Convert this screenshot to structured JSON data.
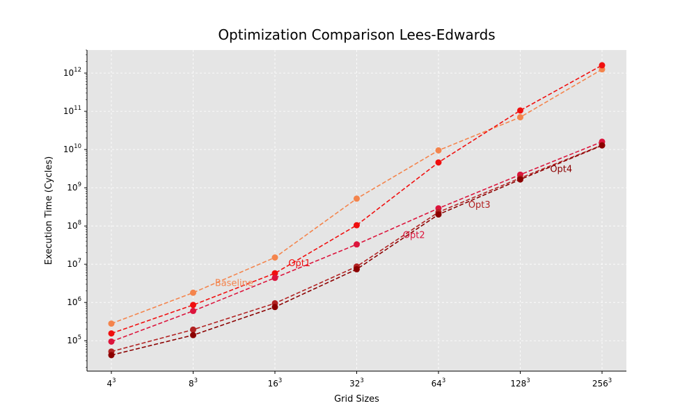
{
  "chart_data": {
    "type": "line",
    "title": "Optimization Comparison Lees-Edwards",
    "xlabel": "Grid Sizes",
    "ylabel": "Execution Time (Cycles)",
    "y_scale": "log",
    "ylim": [
      16000,
      4000000000000
    ],
    "grid": true,
    "categories": [
      {
        "base": "4",
        "exp": "3"
      },
      {
        "base": "8",
        "exp": "3"
      },
      {
        "base": "16",
        "exp": "3"
      },
      {
        "base": "32",
        "exp": "3"
      },
      {
        "base": "64",
        "exp": "3"
      },
      {
        "base": "128",
        "exp": "3"
      },
      {
        "base": "256",
        "exp": "3"
      }
    ],
    "y_ticks": [
      {
        "value": 100000,
        "base": "10",
        "exp": "5"
      },
      {
        "value": 1000000,
        "base": "10",
        "exp": "6"
      },
      {
        "value": 10000000,
        "base": "10",
        "exp": "7"
      },
      {
        "value": 100000000,
        "base": "10",
        "exp": "8"
      },
      {
        "value": 1000000000,
        "base": "10",
        "exp": "9"
      },
      {
        "value": 10000000000,
        "base": "10",
        "exp": "10"
      },
      {
        "value": 100000000000,
        "base": "10",
        "exp": "11"
      },
      {
        "value": 1000000000000,
        "base": "10",
        "exp": "12"
      }
    ],
    "series": [
      {
        "name": "Baseline",
        "color": "#f4844c",
        "values": [
          280000,
          1800000,
          15000000,
          520000000,
          9500000000,
          70000000000,
          1250000000000
        ],
        "label": {
          "text": "Baseline",
          "x": 1.5,
          "y": 2700000
        }
      },
      {
        "name": "Opt1",
        "color": "#f00f0f",
        "values": [
          155000,
          860000,
          5800000,
          105000000,
          4600000000,
          105000000000,
          1600000000000
        ],
        "label": {
          "text": "Opt1",
          "x": 2.3,
          "y": 8800000
        }
      },
      {
        "name": "Opt2",
        "color": "#dc143c",
        "values": [
          95000,
          600000,
          4400000,
          33000000,
          290000000,
          2200000000,
          16000000000
        ],
        "label": {
          "text": "Opt2",
          "x": 3.7,
          "y": 48000000
        }
      },
      {
        "name": "Opt3",
        "color": "#b22222",
        "values": [
          52000,
          195000,
          950000,
          8700000,
          230000000,
          1800000000,
          13000000000
        ],
        "label": {
          "text": "Opt3",
          "x": 4.5,
          "y": 300000000
        }
      },
      {
        "name": "Opt4",
        "color": "#8b0000",
        "values": [
          42000,
          140000,
          760000,
          7400000,
          200000000,
          1650000000,
          12800000000
        ],
        "label": {
          "text": "Opt4",
          "x": 5.5,
          "y": 2600000000
        }
      }
    ]
  }
}
